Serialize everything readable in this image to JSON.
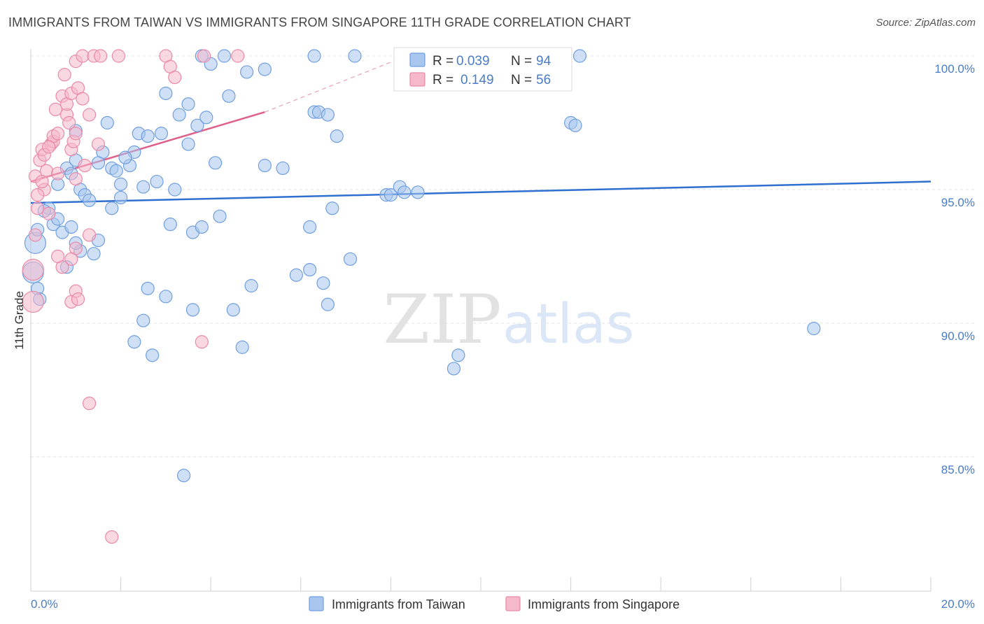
{
  "header": {
    "title": "IMMIGRANTS FROM TAIWAN VS IMMIGRANTS FROM SINGAPORE 11TH GRADE CORRELATION CHART",
    "source": "Source: ZipAtlas.com"
  },
  "watermark": {
    "zip": "ZIP",
    "atlas": "atlas"
  },
  "colors": {
    "taiwan_fill": "#a8c6ee",
    "taiwan_stroke": "#6f9fe0",
    "taiwan_line": "#2f6fcf",
    "singapore_fill": "#f6b8cb",
    "singapore_stroke": "#e98aa8",
    "singapore_line": "#e0608c",
    "grid": "#e3e3e3",
    "axis_text": "#4a7cc7"
  },
  "legend": {
    "rows": [
      {
        "r_label": "R =",
        "r_value": "0.039",
        "n_label": "N =",
        "n_value": "94"
      },
      {
        "r_label": "R =",
        "r_value": "0.149",
        "n_label": "N =",
        "n_value": "56"
      }
    ]
  },
  "bottom_legend": [
    "Immigrants from Taiwan",
    "Immigrants from Singapore"
  ],
  "chart_data": {
    "type": "scatter",
    "title": "IMMIGRANTS FROM TAIWAN VS IMMIGRANTS FROM SINGAPORE 11TH GRADE CORRELATION CHART",
    "xlabel": "",
    "ylabel": "11th Grade",
    "xlim": [
      0,
      20
    ],
    "ylim": [
      80.5,
      101
    ],
    "x_tick_labels": [
      "0.0%",
      "20.0%"
    ],
    "y_ticks": [
      85,
      90,
      95,
      100
    ],
    "y_tick_labels": [
      "85.0%",
      "90.0%",
      "95.0%",
      "100.0%"
    ],
    "grid": true,
    "legend_position": "top-center",
    "series": [
      {
        "name": "Immigrants from Taiwan",
        "r": 0.039,
        "n": 94,
        "trend": {
          "x": [
            0,
            20
          ],
          "y": [
            94.5,
            95.3
          ]
        },
        "points": [
          [
            0.1,
            93.0,
            "l"
          ],
          [
            0.05,
            91.9,
            "l"
          ],
          [
            0.15,
            91.3
          ],
          [
            0.2,
            90.9
          ],
          [
            0.15,
            93.5
          ],
          [
            0.4,
            94.3
          ],
          [
            0.5,
            93.7
          ],
          [
            0.6,
            93.9
          ],
          [
            0.7,
            93.4
          ],
          [
            0.8,
            95.8
          ],
          [
            0.9,
            95.6
          ],
          [
            1.0,
            97.2
          ],
          [
            1.1,
            95.0
          ],
          [
            1.2,
            94.8
          ],
          [
            1.1,
            92.7
          ],
          [
            1.4,
            92.6
          ],
          [
            1.5,
            93.1
          ],
          [
            1.6,
            96.4
          ],
          [
            1.7,
            97.5
          ],
          [
            1.5,
            96.0
          ],
          [
            1.8,
            95.8
          ],
          [
            1.9,
            95.7
          ],
          [
            2.0,
            95.2
          ],
          [
            2.2,
            95.9
          ],
          [
            2.3,
            96.4
          ],
          [
            2.4,
            97.1
          ],
          [
            2.5,
            95.1
          ],
          [
            2.6,
            97.0
          ],
          [
            2.8,
            95.3
          ],
          [
            2.9,
            97.1
          ],
          [
            3.0,
            98.6
          ],
          [
            3.1,
            93.7
          ],
          [
            3.2,
            95.0
          ],
          [
            3.3,
            97.8
          ],
          [
            3.5,
            96.7
          ],
          [
            3.5,
            98.2
          ],
          [
            3.7,
            97.4
          ],
          [
            3.6,
            93.4
          ],
          [
            3.9,
            97.7
          ],
          [
            4.0,
            99.7
          ],
          [
            3.8,
            100.0
          ],
          [
            4.1,
            96.0
          ],
          [
            4.3,
            100.0
          ],
          [
            4.4,
            98.5
          ],
          [
            4.8,
            99.4
          ],
          [
            5.2,
            99.5
          ],
          [
            5.2,
            95.9
          ],
          [
            5.6,
            95.8
          ],
          [
            6.2,
            93.6
          ],
          [
            6.3,
            100.0
          ],
          [
            6.3,
            97.9
          ],
          [
            6.4,
            97.9
          ],
          [
            6.6,
            97.8
          ],
          [
            6.7,
            94.3
          ],
          [
            6.8,
            97.0
          ],
          [
            7.1,
            92.4
          ],
          [
            7.2,
            100.0
          ],
          [
            7.9,
            94.8
          ],
          [
            8.0,
            94.8
          ],
          [
            8.2,
            95.1
          ],
          [
            8.3,
            94.9
          ],
          [
            8.6,
            94.9
          ],
          [
            9.4,
            88.3
          ],
          [
            9.5,
            88.8
          ],
          [
            12.0,
            97.5
          ],
          [
            12.1,
            97.4
          ],
          [
            12.2,
            100.0
          ],
          [
            17.4,
            89.8
          ],
          [
            0.6,
            95.2
          ],
          [
            0.9,
            93.6
          ],
          [
            1.0,
            96.1
          ],
          [
            1.3,
            94.6
          ],
          [
            1.8,
            94.3
          ],
          [
            2.0,
            94.7
          ],
          [
            2.3,
            89.3
          ],
          [
            2.5,
            90.1
          ],
          [
            2.6,
            91.3
          ],
          [
            2.7,
            88.8
          ],
          [
            3.0,
            91.0
          ],
          [
            3.4,
            84.3
          ],
          [
            3.6,
            90.5
          ],
          [
            4.5,
            90.5
          ],
          [
            4.7,
            89.1
          ],
          [
            4.9,
            91.4
          ],
          [
            5.9,
            91.8
          ],
          [
            6.2,
            92.0
          ],
          [
            6.5,
            91.5
          ],
          [
            6.6,
            90.7
          ],
          [
            4.2,
            94.0
          ],
          [
            1.0,
            93.0
          ],
          [
            0.3,
            94.2
          ],
          [
            0.8,
            92.1
          ],
          [
            2.1,
            96.2
          ],
          [
            3.8,
            93.6
          ]
        ]
      },
      {
        "name": "Immigrants from Singapore",
        "r": 0.149,
        "n": 56,
        "trend": {
          "x": [
            0,
            5.2
          ],
          "y": [
            95.3,
            97.9
          ]
        },
        "trend_dashed": {
          "x": [
            5.2,
            8.2
          ],
          "y": [
            97.9,
            99.9
          ]
        },
        "points": [
          [
            0.05,
            92.0,
            "l"
          ],
          [
            0.05,
            90.8,
            "l"
          ],
          [
            0.1,
            93.3
          ],
          [
            0.15,
            94.3
          ],
          [
            0.1,
            95.5
          ],
          [
            0.2,
            96.1
          ],
          [
            0.25,
            96.5
          ],
          [
            0.3,
            96.3
          ],
          [
            0.35,
            95.7
          ],
          [
            0.4,
            94.1
          ],
          [
            0.3,
            95.0
          ],
          [
            0.45,
            96.7
          ],
          [
            0.5,
            96.8
          ],
          [
            0.5,
            97.0
          ],
          [
            0.55,
            98.0
          ],
          [
            0.6,
            97.1
          ],
          [
            0.6,
            95.6
          ],
          [
            0.7,
            98.5
          ],
          [
            0.75,
            99.3
          ],
          [
            0.8,
            97.8
          ],
          [
            0.8,
            98.2
          ],
          [
            0.85,
            97.5
          ],
          [
            0.9,
            96.5
          ],
          [
            0.9,
            98.6
          ],
          [
            0.95,
            96.8
          ],
          [
            1.0,
            97.1
          ],
          [
            1.0,
            95.4
          ],
          [
            1.0,
            99.8
          ],
          [
            1.05,
            98.8
          ],
          [
            1.15,
            98.4
          ],
          [
            1.2,
            95.9
          ],
          [
            1.15,
            100.0
          ],
          [
            1.3,
            97.8
          ],
          [
            1.4,
            100.0
          ],
          [
            1.5,
            96.7
          ],
          [
            1.55,
            100.0
          ],
          [
            1.95,
            100.0
          ],
          [
            3.0,
            100.0
          ],
          [
            3.1,
            99.6
          ],
          [
            3.2,
            99.2
          ],
          [
            3.85,
            100.0
          ],
          [
            4.6,
            100.0
          ],
          [
            1.3,
            93.3
          ],
          [
            1.0,
            92.8
          ],
          [
            0.9,
            92.4
          ],
          [
            0.7,
            92.1
          ],
          [
            0.9,
            90.8
          ],
          [
            1.0,
            91.2
          ],
          [
            1.3,
            87.0
          ],
          [
            1.8,
            82.0
          ],
          [
            3.8,
            89.3
          ],
          [
            1.05,
            90.9
          ],
          [
            0.6,
            92.5
          ],
          [
            0.15,
            94.8
          ],
          [
            0.4,
            96.6
          ],
          [
            0.25,
            95.3
          ]
        ]
      }
    ]
  }
}
